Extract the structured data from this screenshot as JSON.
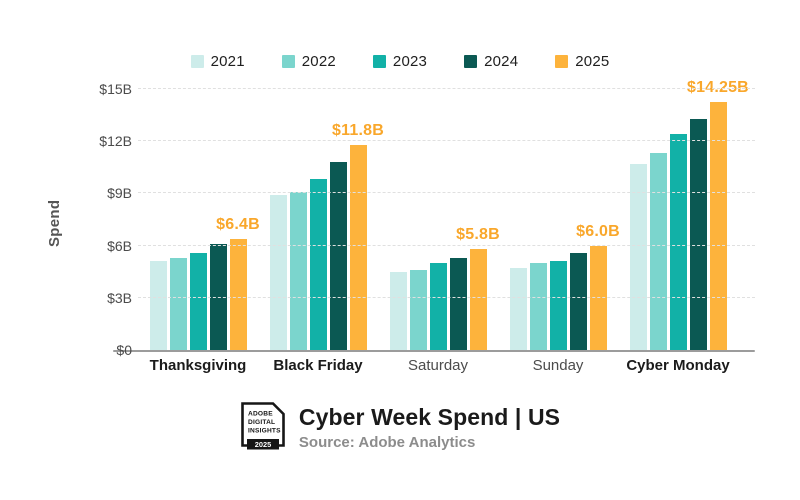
{
  "chart_data": {
    "type": "bar",
    "title": "Cyber Week Spend | US",
    "source": "Source: Adobe Analytics",
    "ylabel": "Spend",
    "ylim": [
      0,
      15
    ],
    "yticks": [
      0,
      3,
      6,
      9,
      12,
      15
    ],
    "ytick_labels": [
      "$0",
      "$3B",
      "$6B",
      "$9B",
      "$12B",
      "$15B"
    ],
    "grid": "horizontal-dashed",
    "legend_position": "top-center",
    "categories": [
      "Thanksgiving",
      "Black Friday",
      "Saturday",
      "Sunday",
      "Cyber Monday"
    ],
    "category_emphasis": [
      true,
      true,
      false,
      false,
      true
    ],
    "series": [
      {
        "name": "2021",
        "color": "#cdecea",
        "texture": "dotted",
        "values": [
          5.1,
          8.9,
          4.5,
          4.7,
          10.7
        ]
      },
      {
        "name": "2022",
        "color": "#7bd5cd",
        "texture": "solid",
        "values": [
          5.3,
          9.1,
          4.6,
          5.0,
          11.3
        ]
      },
      {
        "name": "2023",
        "color": "#12b1a7",
        "texture": "solid",
        "values": [
          5.6,
          9.8,
          5.0,
          5.1,
          12.4
        ]
      },
      {
        "name": "2024",
        "color": "#0b5953",
        "texture": "solid",
        "values": [
          6.1,
          10.8,
          5.3,
          5.6,
          13.3
        ]
      },
      {
        "name": "2025",
        "color": "#fdb33c",
        "texture": "solid",
        "values": [
          6.4,
          11.8,
          5.8,
          6.0,
          14.25
        ]
      }
    ],
    "value_labels": {
      "series": "2025",
      "labels": [
        "$6.4B",
        "$11.8B",
        "$5.8B",
        "$6.0B",
        "$14.25B"
      ],
      "color": "#f9a72b"
    },
    "axis_colors": {
      "baseline": "#9c9c9c",
      "gridline": "#e0e0e0",
      "tick_text": "#4b4b4b"
    }
  },
  "footer": {
    "logo": {
      "lines": [
        "ADOBE",
        "DIGITAL",
        "INSIGHTS"
      ],
      "year": "2025"
    },
    "title": "Cyber Week Spend | US",
    "source": "Source: Adobe Analytics"
  }
}
